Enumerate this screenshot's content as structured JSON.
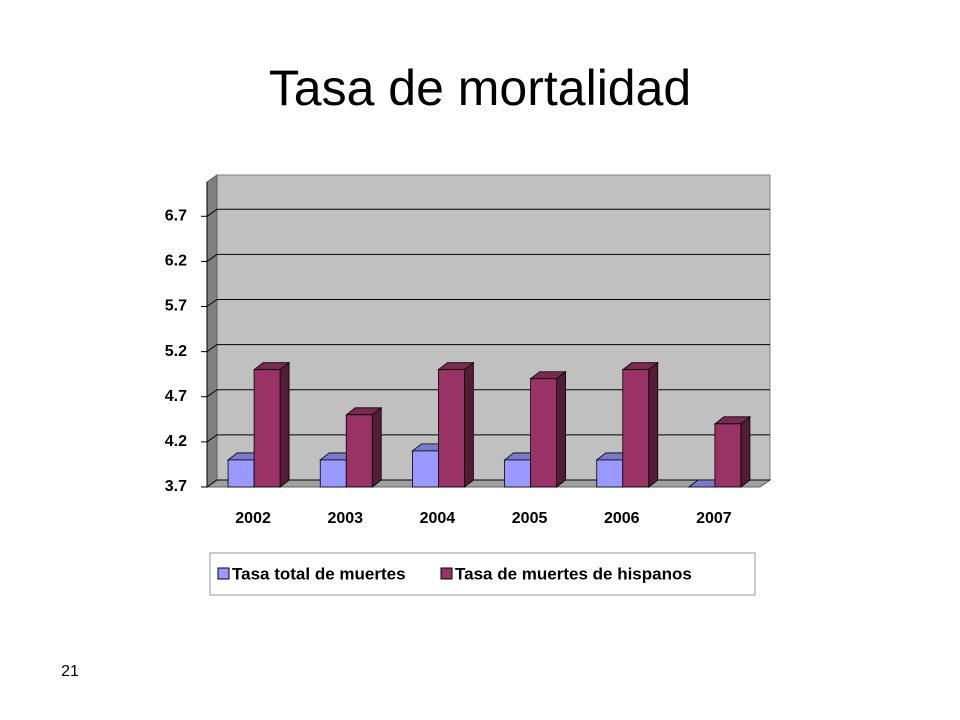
{
  "chart_data": {
    "type": "bar3d",
    "title": "Tasa de mortalidad",
    "categories": [
      "2002",
      "2003",
      "2004",
      "2005",
      "2006",
      "2007"
    ],
    "series": [
      {
        "name": "Tasa total de muertes",
        "color": "#9999ff",
        "values": [
          4.0,
          4.0,
          4.1,
          4.0,
          4.0,
          3.7
        ]
      },
      {
        "name": "Tasa de muertes de hispanos",
        "color": "#993366",
        "values": [
          5.0,
          4.5,
          5.0,
          4.9,
          5.0,
          4.4
        ]
      }
    ],
    "ylim": [
      3.7,
      7.08
    ],
    "yticks": [
      3.7,
      4.2,
      4.7,
      5.2,
      5.7,
      6.2,
      6.7
    ],
    "grid": true,
    "legend": "bottom"
  },
  "page_number": "21"
}
